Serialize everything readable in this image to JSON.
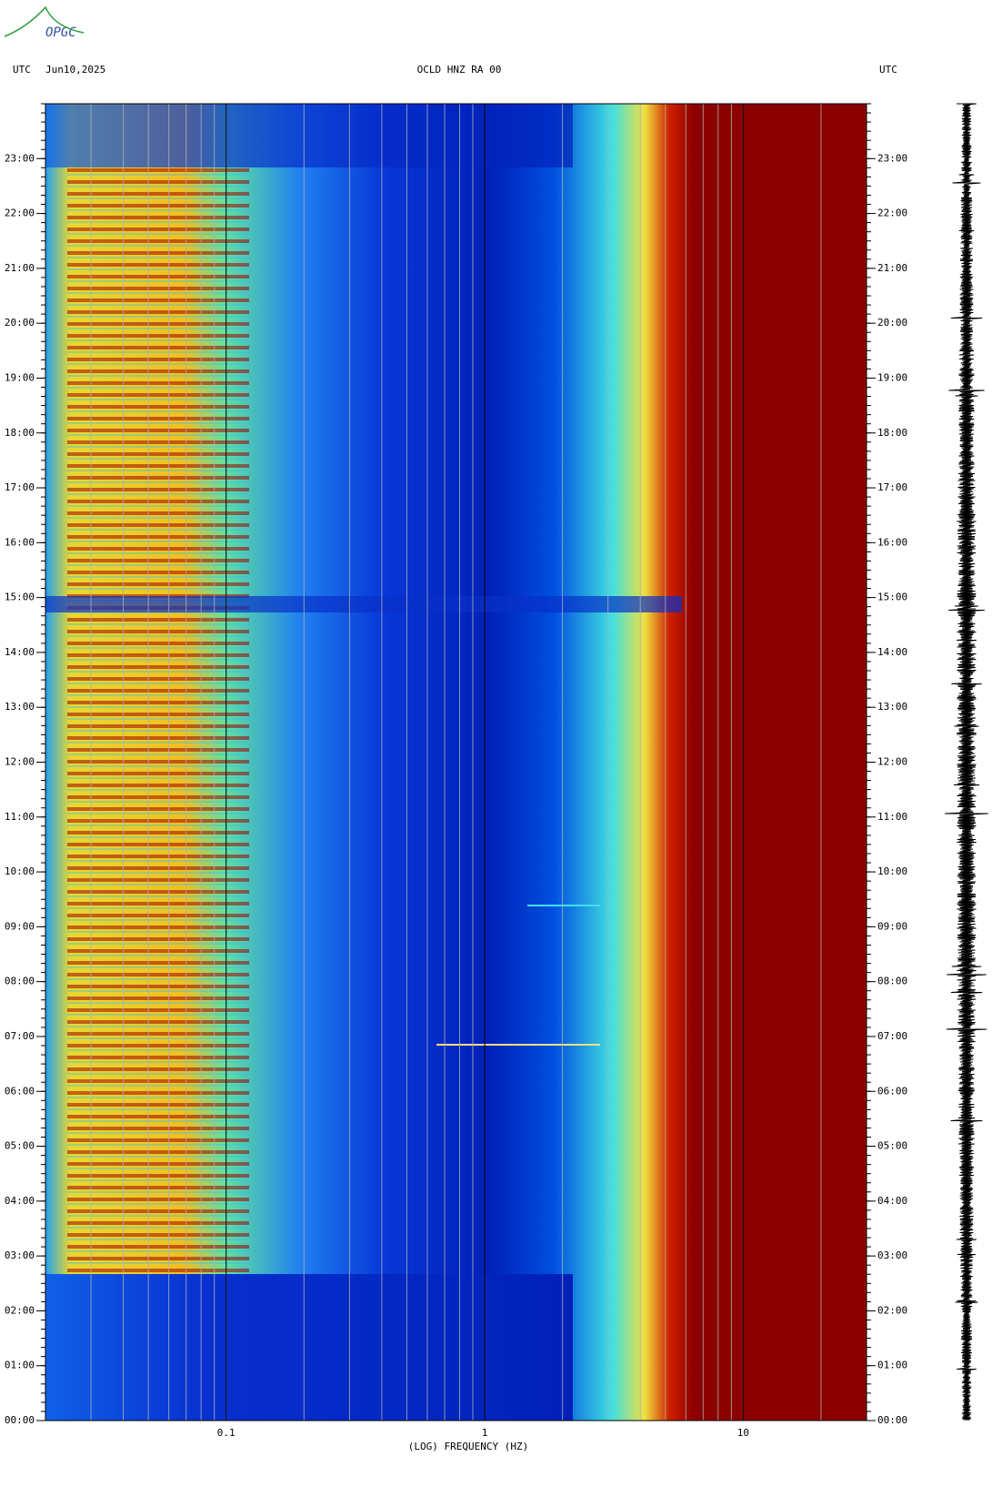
{
  "logo": "OPGC",
  "chart_data": {
    "type": "spectrogram",
    "header_left": "UTC",
    "date": "Jun10,2025",
    "title": "OCLD HNZ RA 00",
    "header_right": "UTC",
    "x_label": "(LOG) FREQUENCY (HZ)",
    "xscale": "log",
    "xlim": [
      0.02,
      30
    ],
    "xticks": [
      {
        "value": 0.1,
        "label": "0.1"
      },
      1,
      10
    ],
    "ylim": [
      0,
      24
    ],
    "yticks": [
      {
        "value": 0,
        "label": "00:00"
      },
      {
        "value": 1,
        "label": "01:00"
      },
      {
        "value": 2,
        "label": "02:00"
      },
      {
        "value": 3,
        "label": "03:00"
      },
      {
        "value": 4,
        "label": "04:00"
      },
      {
        "value": 5,
        "label": "05:00"
      },
      {
        "value": 6,
        "label": "06:00"
      },
      {
        "value": 7,
        "label": "07:00"
      },
      {
        "value": 8,
        "label": "08:00"
      },
      {
        "value": 9,
        "label": "09:00"
      },
      {
        "value": 10,
        "label": "10:00"
      },
      {
        "value": 11,
        "label": "11:00"
      },
      {
        "value": 12,
        "label": "12:00"
      },
      {
        "value": 13,
        "label": "13:00"
      },
      {
        "value": 14,
        "label": "14:00"
      },
      {
        "value": 15,
        "label": "15:00"
      },
      {
        "value": 16,
        "label": "16:00"
      },
      {
        "value": 17,
        "label": "17:00"
      },
      {
        "value": 18,
        "label": "18:00"
      },
      {
        "value": 19,
        "label": "19:00"
      },
      {
        "value": 20,
        "label": "20:00"
      },
      {
        "value": 21,
        "label": "21:00"
      },
      {
        "value": 22,
        "label": "22:00"
      },
      {
        "value": 23,
        "label": "23:00"
      }
    ],
    "grid": true
  }
}
